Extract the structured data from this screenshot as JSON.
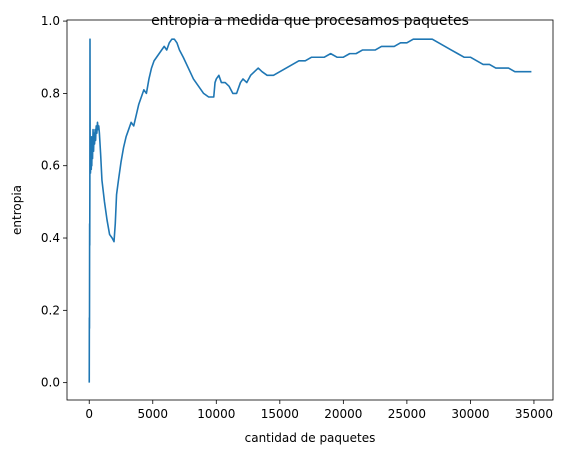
{
  "chart_data": {
    "type": "line",
    "title": "entropia a medida que procesamos paquetes",
    "xlabel": "cantidad de paquetes",
    "ylabel": "entropia",
    "xlim": [
      -1750,
      36500
    ],
    "ylim": [
      -0.048,
      1.003
    ],
    "x_ticks": [
      0,
      5000,
      10000,
      15000,
      20000,
      25000,
      30000,
      35000
    ],
    "x_tick_labels": [
      "0",
      "5000",
      "10000",
      "15000",
      "20000",
      "25000",
      "30000",
      "35000"
    ],
    "y_ticks": [
      0.0,
      0.2,
      0.4,
      0.6,
      0.8,
      1.0
    ],
    "y_tick_labels": [
      "0.0",
      "0.2",
      "0.4",
      "0.6",
      "0.8",
      "1.0"
    ],
    "grid": false,
    "series": [
      {
        "color": "#1f77b4",
        "x": [
          1,
          10,
          20,
          30,
          40,
          50,
          60,
          70,
          80,
          90,
          100,
          110,
          120,
          140,
          160,
          180,
          200,
          230,
          260,
          300,
          340,
          380,
          420,
          460,
          500,
          550,
          600,
          650,
          700,
          750,
          800,
          900,
          1000,
          1200,
          1400,
          1600,
          1800,
          1950,
          2050,
          2150,
          2300,
          2500,
          2700,
          2900,
          3100,
          3300,
          3500,
          3700,
          3900,
          4100,
          4300,
          4500,
          4700,
          4900,
          5100,
          5300,
          5500,
          5700,
          5900,
          6100,
          6300,
          6500,
          6700,
          6900,
          7100,
          7400,
          7800,
          8200,
          8600,
          9000,
          9400,
          9800,
          9900,
          10000,
          10200,
          10400,
          10700,
          11000,
          11300,
          11600,
          11900,
          12100,
          12400,
          12700,
          13000,
          13300,
          13600,
          14000,
          14500,
          15000,
          15500,
          16000,
          16500,
          17000,
          17500,
          18000,
          18500,
          19000,
          19500,
          20000,
          20500,
          21000,
          21500,
          22000,
          22500,
          23000,
          23500,
          24000,
          24500,
          25000,
          25500,
          26000,
          26500,
          27000,
          27500,
          28000,
          28500,
          29000,
          29500,
          30000,
          30500,
          31000,
          31500,
          32000,
          32500,
          33000,
          33500,
          34000,
          34500,
          34800
        ],
        "y": [
          0.0,
          0.18,
          0.15,
          0.44,
          0.38,
          0.55,
          0.95,
          0.7,
          0.6,
          0.68,
          0.58,
          0.66,
          0.6,
          0.65,
          0.59,
          0.68,
          0.6,
          0.67,
          0.62,
          0.7,
          0.64,
          0.69,
          0.66,
          0.7,
          0.67,
          0.71,
          0.69,
          0.72,
          0.7,
          0.71,
          0.69,
          0.63,
          0.56,
          0.5,
          0.45,
          0.41,
          0.4,
          0.39,
          0.44,
          0.52,
          0.56,
          0.61,
          0.65,
          0.68,
          0.7,
          0.72,
          0.71,
          0.74,
          0.77,
          0.79,
          0.81,
          0.8,
          0.84,
          0.87,
          0.89,
          0.9,
          0.91,
          0.92,
          0.93,
          0.92,
          0.94,
          0.95,
          0.95,
          0.94,
          0.92,
          0.9,
          0.87,
          0.84,
          0.82,
          0.8,
          0.79,
          0.79,
          0.83,
          0.84,
          0.85,
          0.83,
          0.83,
          0.82,
          0.8,
          0.8,
          0.83,
          0.84,
          0.83,
          0.85,
          0.86,
          0.87,
          0.86,
          0.85,
          0.85,
          0.86,
          0.87,
          0.88,
          0.89,
          0.89,
          0.9,
          0.9,
          0.9,
          0.91,
          0.9,
          0.9,
          0.91,
          0.91,
          0.92,
          0.92,
          0.92,
          0.93,
          0.93,
          0.93,
          0.94,
          0.94,
          0.95,
          0.95,
          0.95,
          0.95,
          0.94,
          0.93,
          0.92,
          0.91,
          0.9,
          0.9,
          0.89,
          0.88,
          0.88,
          0.87,
          0.87,
          0.87,
          0.86,
          0.86,
          0.86,
          0.86
        ]
      }
    ]
  }
}
